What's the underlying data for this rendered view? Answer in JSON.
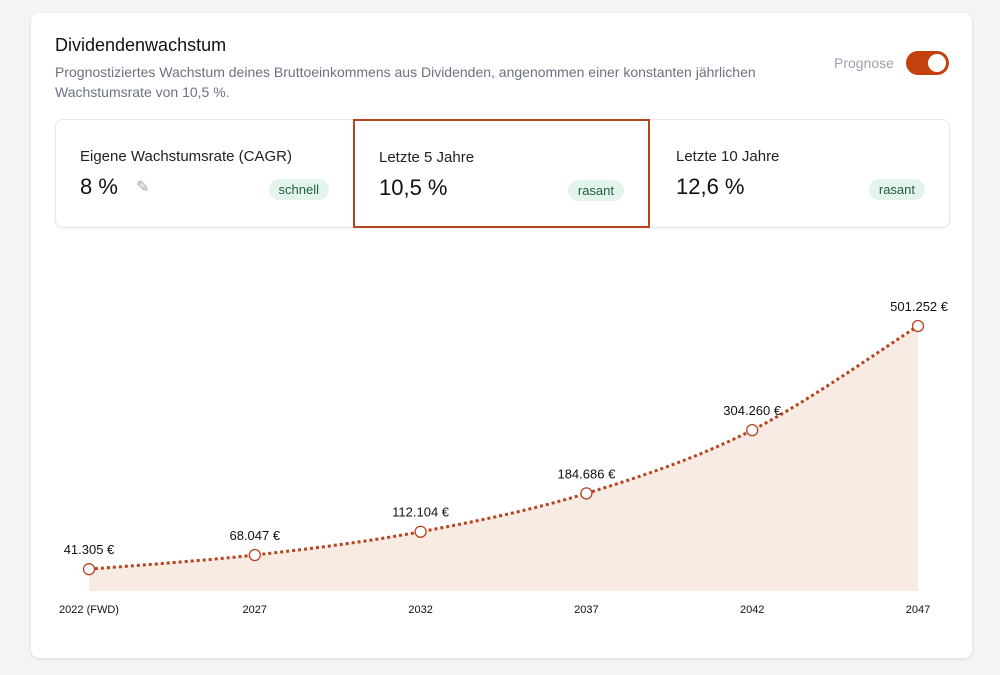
{
  "header": {
    "title": "Dividendenwachstum",
    "description": "Prognostiziertes Wachstum deines Bruttoeinkommens aus Dividenden, angenommen einer konstanten jährlichen Wachstumsrate von 10,5 %.",
    "toggle_label": "Prognose",
    "toggle_on": true
  },
  "stats": [
    {
      "label": "Eigene Wachstumsrate (CAGR)",
      "value": "8 %",
      "badge": "schnell",
      "editable": true,
      "icon": "pencil-icon"
    },
    {
      "label": "Letzte 5 Jahre",
      "value": "10,5 %",
      "badge": "rasant",
      "selected": true
    },
    {
      "label": "Letzte 10 Jahre",
      "value": "12,6 %",
      "badge": "rasant"
    }
  ],
  "colors": {
    "accent": "#c2410c",
    "line": "#b5441f",
    "area": "#f8ebe4",
    "badge_bg": "#e3f4ec",
    "badge_text": "#1f5f3f"
  },
  "chart_data": {
    "type": "area",
    "categories": [
      "2022 (FWD)",
      "2027",
      "2032",
      "2037",
      "2042",
      "2047"
    ],
    "values": [
      41305,
      68047,
      112104,
      184686,
      304260,
      501252
    ],
    "data_labels": [
      "41.305 €",
      "68.047 €",
      "112.104 €",
      "184.686 €",
      "304.260 €",
      "501.252 €"
    ],
    "line_style": "dotted",
    "markers": "hollow-circle",
    "grid": false,
    "ylim": [
      0,
      501252
    ]
  }
}
